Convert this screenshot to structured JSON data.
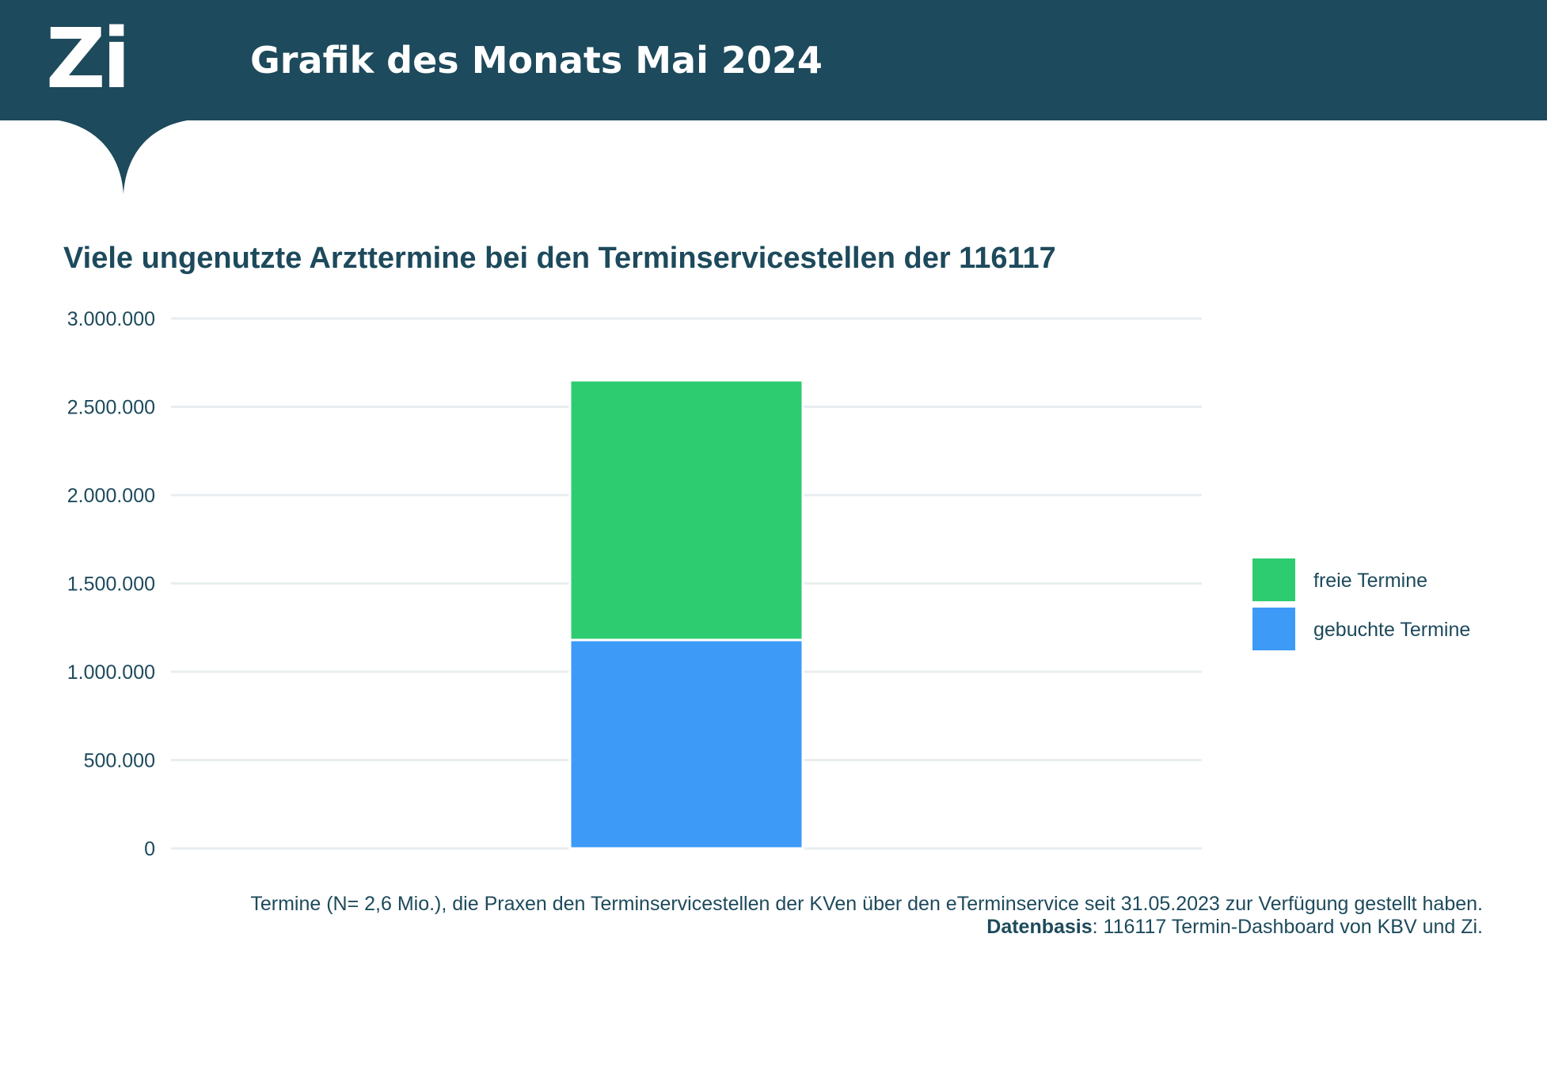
{
  "header": {
    "logo_text": "Zi",
    "title": "Grafik des Monats Mai 2024"
  },
  "colors": {
    "header_bg": "#1d4a5c",
    "free": "#2ecc71",
    "booked": "#3d9af7",
    "grid": "#e8eef0",
    "text": "#1d4a5c"
  },
  "chart_data": {
    "type": "bar",
    "stacked": true,
    "title": "Viele ungenutzte Arzttermine bei den Terminservicestellen der 116117",
    "categories": [
      ""
    ],
    "series": [
      {
        "name": "gebuchte Termine",
        "values": [
          1180000
        ],
        "color": "#3d9af7"
      },
      {
        "name": "freie Termine",
        "values": [
          1470000
        ],
        "color": "#2ecc71"
      }
    ],
    "ylim": [
      0,
      3000000
    ],
    "yticks": [
      0,
      500000,
      1000000,
      1500000,
      2000000,
      2500000,
      3000000
    ],
    "ytick_labels": [
      "0",
      "500.000",
      "1.000.000",
      "1.500.000",
      "2.000.000",
      "2.500.000",
      "3.000.000"
    ],
    "grid": true,
    "legend": {
      "position": "right",
      "entries": [
        "freie Termine",
        "gebuchte Termine"
      ]
    }
  },
  "caption": {
    "line1": "Termine (N= 2,6 Mio.), die Praxen den Terminservicestellen der KVen über den eTerminservice seit 31.05.2023 zur Verfügung gestellt haben.",
    "source_label": "Datenbasis",
    "source_text": ": 116117 Termin-Dashboard von KBV und Zi."
  }
}
